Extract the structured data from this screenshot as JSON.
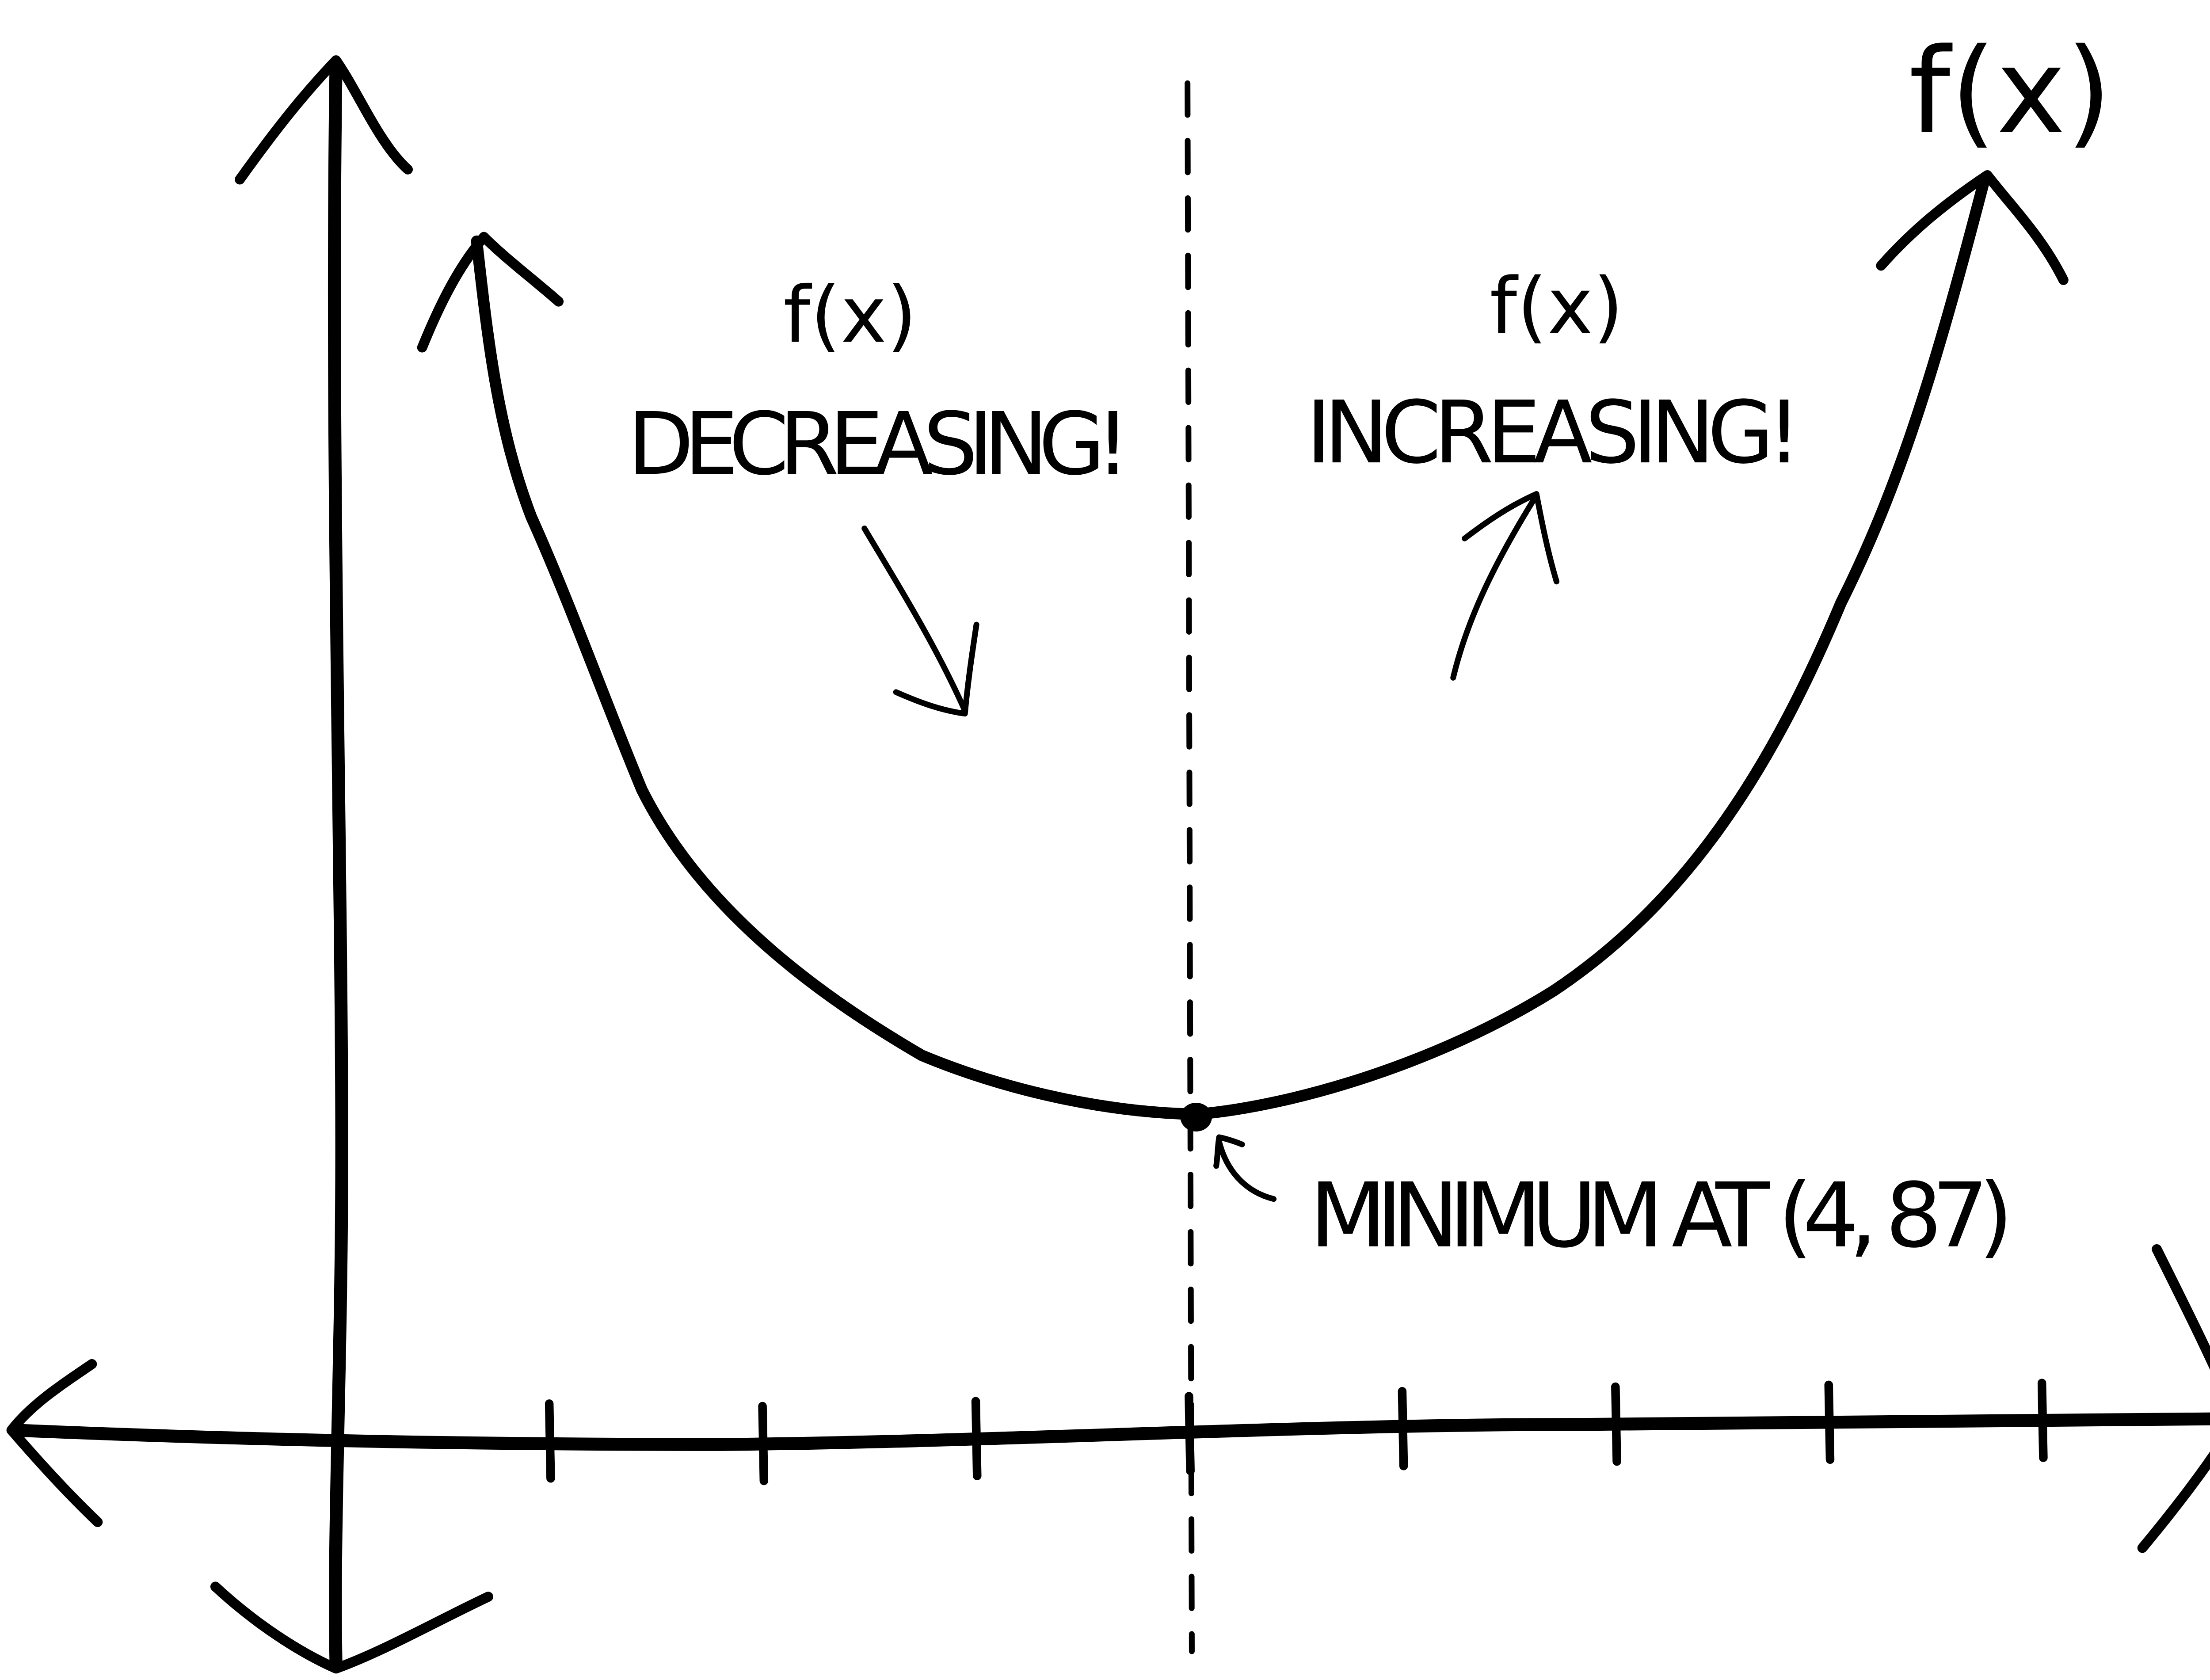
{
  "diagram": {
    "curve_label": "f(x)",
    "decreasing_label": {
      "line1": "f(x)",
      "line2": "DECREASING!"
    },
    "increasing_label": {
      "line1": "f(x)",
      "line2": "INCREASING!"
    },
    "minimum_label": "MINIMUM AT (4, 87)",
    "tick_count": 8,
    "min_x_tick": 4,
    "ink_color": "#000000",
    "background_color": "#ffffff"
  }
}
